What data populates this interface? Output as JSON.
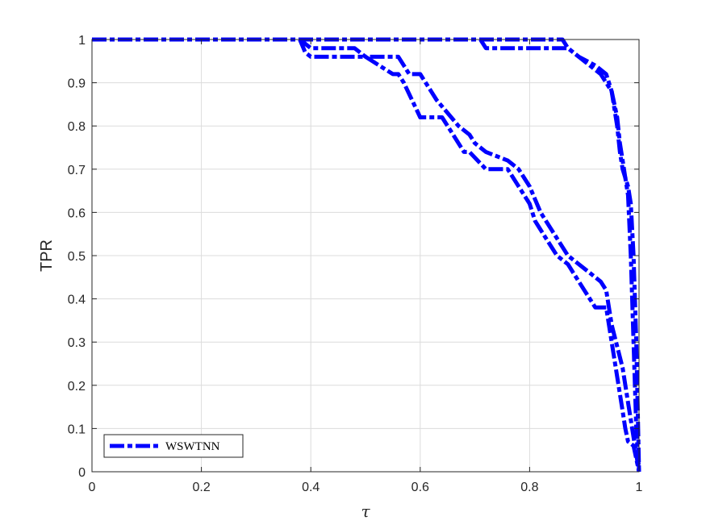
{
  "chart_data": {
    "type": "line",
    "xlabel": "τ",
    "ylabel": "TPR",
    "xlim": [
      0,
      1
    ],
    "ylim": [
      0,
      1
    ],
    "x_ticks": [
      0,
      0.2,
      0.4,
      0.6,
      0.8,
      1
    ],
    "x_tick_labels": [
      "0",
      "0.2",
      "0.4",
      "0.6",
      "0.8",
      "1"
    ],
    "y_ticks": [
      0,
      0.1,
      0.2,
      0.3,
      0.4,
      0.5,
      0.6,
      0.7,
      0.8,
      0.9,
      1
    ],
    "y_tick_labels": [
      "0",
      "0.1",
      "0.2",
      "0.3",
      "0.4",
      "0.5",
      "0.6",
      "0.7",
      "0.8",
      "0.9",
      "1"
    ],
    "grid": true,
    "legend_position": "bottom-left",
    "legend_label": "WSWTNN",
    "line_color": "#0000FF",
    "line_style": "dash-dot",
    "series": [
      {
        "x": [
          0,
          0.38,
          0.39,
          0.4,
          0.49,
          0.5,
          0.55,
          0.56,
          0.57,
          0.6,
          0.61,
          0.64,
          0.66,
          0.68,
          0.69,
          0.72,
          0.74,
          0.76,
          0.78,
          0.8,
          0.81,
          0.83,
          0.85,
          0.87,
          0.88,
          0.9,
          0.92,
          0.94,
          0.95,
          0.96,
          0.97,
          0.975,
          0.98,
          0.99,
          1.0
        ],
        "y": [
          1,
          1,
          0.97,
          0.96,
          0.96,
          0.96,
          0.92,
          0.92,
          0.9,
          0.82,
          0.82,
          0.82,
          0.78,
          0.74,
          0.74,
          0.7,
          0.7,
          0.7,
          0.66,
          0.62,
          0.58,
          0.54,
          0.5,
          0.48,
          0.46,
          0.42,
          0.38,
          0.38,
          0.3,
          0.22,
          0.14,
          0.1,
          0.07,
          0.06,
          0.0
        ]
      },
      {
        "x": [
          0,
          0.38,
          0.4,
          0.48,
          0.5,
          0.56,
          0.57,
          0.58,
          0.6,
          0.62,
          0.63,
          0.67,
          0.69,
          0.7,
          0.72,
          0.76,
          0.78,
          0.79,
          0.8,
          0.81,
          0.82,
          0.84,
          0.85,
          0.87,
          0.89,
          0.91,
          0.93,
          0.94,
          0.95,
          0.97,
          0.98,
          0.99,
          1.0
        ],
        "y": [
          1,
          1,
          0.98,
          0.98,
          0.96,
          0.96,
          0.94,
          0.92,
          0.92,
          0.88,
          0.86,
          0.8,
          0.78,
          0.76,
          0.74,
          0.72,
          0.7,
          0.68,
          0.66,
          0.63,
          0.6,
          0.56,
          0.54,
          0.5,
          0.48,
          0.46,
          0.44,
          0.42,
          0.34,
          0.24,
          0.16,
          0.08,
          0.0
        ]
      },
      {
        "x": [
          0,
          0.71,
          0.72,
          0.87,
          0.88,
          0.91,
          0.93,
          0.95,
          0.96,
          0.965,
          0.97,
          0.975,
          0.98,
          0.985,
          0.99,
          0.995,
          1.0
        ],
        "y": [
          1,
          1,
          0.98,
          0.98,
          0.97,
          0.94,
          0.92,
          0.88,
          0.82,
          0.76,
          0.72,
          0.68,
          0.64,
          0.5,
          0.3,
          0.1,
          0.0
        ]
      },
      {
        "x": [
          0,
          0.86,
          0.87,
          0.89,
          0.92,
          0.94,
          0.95,
          0.96,
          0.965,
          0.97,
          0.975,
          0.98,
          0.985,
          0.99,
          0.995,
          1.0
        ],
        "y": [
          1,
          1,
          0.98,
          0.96,
          0.94,
          0.92,
          0.88,
          0.8,
          0.74,
          0.7,
          0.68,
          0.66,
          0.62,
          0.5,
          0.3,
          0.0
        ]
      }
    ]
  }
}
